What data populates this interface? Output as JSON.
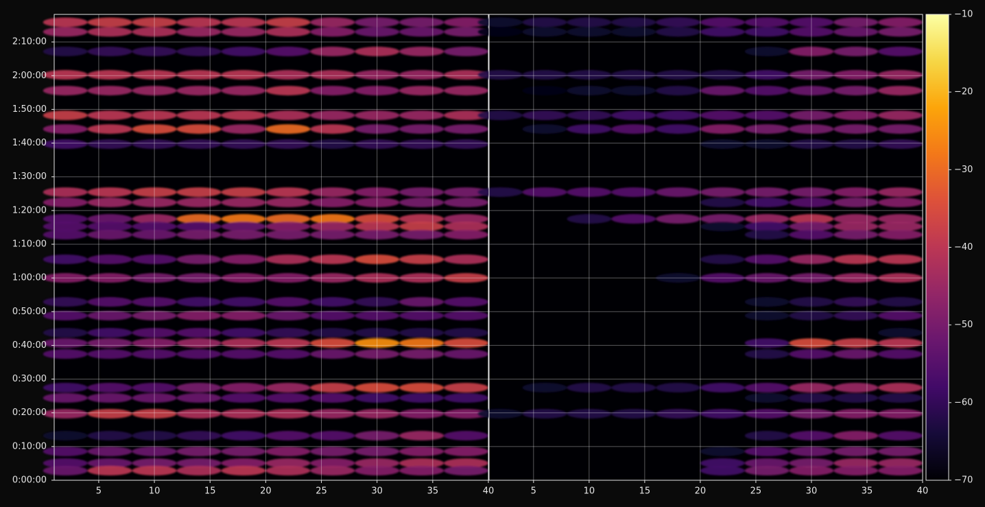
{
  "chart_data": {
    "type": "heatmap",
    "colormap": "inferno",
    "grid": true,
    "x": [
      2,
      6,
      10,
      14,
      18,
      22,
      26,
      30,
      34,
      38
    ],
    "y": [
      8150,
      7980,
      7630,
      7215,
      6934,
      6494,
      6250,
      5982,
      5127,
      4944,
      4651,
      4517,
      4370,
      3931,
      3601,
      3174,
      2930,
      2625,
      2441,
      2246,
      1648,
      1465,
      1184,
      793,
      513,
      305,
      171
    ],
    "ylim": [
      0,
      8290
    ],
    "yticks": [
      {
        "value": 0,
        "label": "0:00:00"
      },
      {
        "value": 600,
        "label": "0:10:00"
      },
      {
        "value": 1200,
        "label": "0:20:00"
      },
      {
        "value": 1800,
        "label": "0:30:00"
      },
      {
        "value": 2400,
        "label": "0:40:00"
      },
      {
        "value": 3000,
        "label": "0:50:00"
      },
      {
        "value": 3600,
        "label": "1:00:00"
      },
      {
        "value": 4200,
        "label": "1:10:00"
      },
      {
        "value": 4800,
        "label": "1:20:00"
      },
      {
        "value": 5400,
        "label": "1:30:00"
      },
      {
        "value": 6000,
        "label": "1:40:00"
      },
      {
        "value": 6600,
        "label": "1:50:00"
      },
      {
        "value": 7200,
        "label": "2:00:00"
      },
      {
        "value": 7800,
        "label": "2:10:00"
      }
    ],
    "panels": [
      {
        "xlim": [
          1,
          40
        ],
        "xticks": [
          5,
          10,
          15,
          20,
          25,
          30,
          35,
          40
        ],
        "values": [
          [
            -40,
            -38,
            -38,
            -40,
            -40,
            -38,
            -45,
            -50,
            -50,
            -48
          ],
          [
            -45,
            -42,
            -42,
            -45,
            -45,
            -42,
            -48,
            -52,
            -52,
            -50
          ],
          [
            -62,
            -60,
            -60,
            -60,
            -58,
            -55,
            -45,
            -42,
            -45,
            -50
          ],
          [
            -40,
            -40,
            -40,
            -40,
            -40,
            -42,
            -42,
            -45,
            -45,
            -42
          ],
          [
            -45,
            -45,
            -45,
            -45,
            -45,
            -40,
            -48,
            -48,
            -45,
            -45
          ],
          [
            -38,
            -40,
            -40,
            -40,
            -40,
            -42,
            -45,
            -45,
            -45,
            -42
          ],
          [
            -48,
            -40,
            -35,
            -35,
            -45,
            -30,
            -40,
            -50,
            -50,
            -50
          ],
          [
            -58,
            -60,
            -60,
            -60,
            -60,
            -60,
            -62,
            -60,
            -60,
            -60
          ],
          [
            -42,
            -40,
            -38,
            -38,
            -38,
            -40,
            -45,
            -48,
            -50,
            -50
          ],
          [
            -48,
            -45,
            -45,
            -45,
            -45,
            -45,
            -48,
            -48,
            -50,
            -50
          ],
          [
            -55,
            -52,
            -45,
            -30,
            -28,
            -30,
            -28,
            -35,
            -40,
            -45
          ],
          [
            -55,
            -55,
            -55,
            -55,
            -52,
            -48,
            -45,
            -40,
            -38,
            -42
          ],
          [
            -55,
            -52,
            -52,
            -50,
            -50,
            -50,
            -50,
            -50,
            -50,
            -48
          ],
          [
            -58,
            -55,
            -55,
            -50,
            -48,
            -42,
            -40,
            -35,
            -38,
            -42
          ],
          [
            -48,
            -48,
            -50,
            -50,
            -48,
            -48,
            -45,
            -42,
            -42,
            -38
          ],
          [
            -60,
            -55,
            -55,
            -58,
            -58,
            -55,
            -58,
            -60,
            -52,
            -55
          ],
          [
            -55,
            -52,
            -50,
            -48,
            -48,
            -52,
            -55,
            -55,
            -55,
            -55
          ],
          [
            -62,
            -58,
            -55,
            -55,
            -58,
            -60,
            -62,
            -62,
            -62,
            -62
          ],
          [
            -52,
            -50,
            -48,
            -45,
            -42,
            -40,
            -35,
            -25,
            -28,
            -35
          ],
          [
            -55,
            -55,
            -55,
            -55,
            -55,
            -55,
            -52,
            -50,
            -50,
            -52
          ],
          [
            -58,
            -55,
            -55,
            -50,
            -48,
            -45,
            -38,
            -35,
            -35,
            -38
          ],
          [
            -52,
            -52,
            -52,
            -52,
            -55,
            -55,
            -55,
            -58,
            -58,
            -58
          ],
          [
            -45,
            -38,
            -38,
            -42,
            -42,
            -42,
            -45,
            -45,
            -48,
            -48
          ],
          [
            -65,
            -62,
            -62,
            -60,
            -58,
            -55,
            -55,
            -50,
            -45,
            -55
          ],
          [
            -55,
            -52,
            -52,
            -50,
            -50,
            -48,
            -50,
            -50,
            -48,
            -48
          ],
          [
            -55,
            -52,
            -50,
            -50,
            -48,
            -45,
            -48,
            -45,
            -42,
            -42
          ],
          [
            -52,
            -40,
            -40,
            -42,
            -40,
            -42,
            -45,
            -48,
            -48,
            -50
          ]
        ]
      },
      {
        "xlim": [
          1,
          40
        ],
        "xticks": [
          5,
          10,
          15,
          20,
          25,
          30,
          35,
          40
        ],
        "values": [
          [
            -65,
            -62,
            -62,
            -62,
            -60,
            -55,
            -55,
            -55,
            -50,
            -48
          ],
          [
            -68,
            -65,
            -65,
            -65,
            -62,
            -58,
            -58,
            -55,
            -52,
            -50
          ],
          [
            null,
            null,
            null,
            null,
            null,
            null,
            -65,
            -48,
            -50,
            -55
          ],
          [
            -62,
            -62,
            -62,
            -62,
            -62,
            -62,
            -58,
            -50,
            -48,
            -45
          ],
          [
            null,
            -68,
            -65,
            -65,
            -62,
            -52,
            -55,
            -52,
            -50,
            -45
          ],
          [
            -62,
            -60,
            -60,
            -58,
            -58,
            -55,
            -55,
            -50,
            -48,
            -45
          ],
          [
            null,
            -65,
            -58,
            -55,
            -58,
            -48,
            -50,
            -50,
            -50,
            -50
          ],
          [
            null,
            null,
            null,
            null,
            null,
            -65,
            -65,
            -62,
            -62,
            -60
          ],
          [
            -62,
            -55,
            -55,
            -55,
            -52,
            -50,
            -50,
            -50,
            -48,
            -45
          ],
          [
            null,
            null,
            null,
            null,
            null,
            -62,
            -58,
            -55,
            -50,
            -48
          ],
          [
            null,
            null,
            -62,
            -55,
            -50,
            -50,
            -45,
            -40,
            -45,
            -45
          ],
          [
            null,
            null,
            null,
            null,
            null,
            -65,
            -58,
            -50,
            -45,
            -45
          ],
          [
            null,
            null,
            null,
            null,
            null,
            null,
            -62,
            -55,
            -50,
            -48
          ],
          [
            null,
            null,
            null,
            null,
            null,
            -62,
            -55,
            -45,
            -40,
            -40
          ],
          [
            null,
            null,
            null,
            null,
            -65,
            -55,
            -52,
            -50,
            -45,
            -42
          ],
          [
            null,
            null,
            null,
            null,
            null,
            null,
            -65,
            -62,
            -60,
            -62
          ],
          [
            null,
            null,
            null,
            null,
            null,
            null,
            -65,
            -62,
            -60,
            -55
          ],
          [
            null,
            null,
            null,
            null,
            null,
            null,
            null,
            null,
            null,
            -65
          ],
          [
            null,
            null,
            null,
            null,
            null,
            null,
            -58,
            -35,
            -38,
            -40
          ],
          [
            null,
            null,
            null,
            null,
            null,
            null,
            -62,
            -55,
            -52,
            -55
          ],
          [
            null,
            -65,
            -62,
            -62,
            -62,
            -58,
            -55,
            -45,
            -45,
            -42
          ],
          [
            null,
            null,
            null,
            null,
            null,
            null,
            -65,
            -62,
            -62,
            -62
          ],
          [
            -65,
            -62,
            -62,
            -62,
            -60,
            -58,
            -55,
            -50,
            -48,
            -48
          ],
          [
            null,
            null,
            null,
            null,
            null,
            null,
            -62,
            -55,
            -48,
            -55
          ],
          [
            null,
            null,
            null,
            null,
            null,
            -65,
            -55,
            -52,
            -50,
            -50
          ],
          [
            null,
            null,
            null,
            null,
            null,
            -58,
            -52,
            -50,
            -45,
            -45
          ],
          [
            null,
            null,
            null,
            null,
            null,
            -58,
            -50,
            -48,
            -48,
            -48
          ]
        ]
      }
    ],
    "colorbar": {
      "clim": [
        -70,
        -10
      ],
      "ticks": [
        {
          "value": -70,
          "label": "−70"
        },
        {
          "value": -60,
          "label": "−60"
        },
        {
          "value": -50,
          "label": "−50"
        },
        {
          "value": -40,
          "label": "−40"
        },
        {
          "value": -30,
          "label": "−30"
        },
        {
          "value": -20,
          "label": "−20"
        },
        {
          "value": -10,
          "label": "−10"
        }
      ]
    }
  }
}
